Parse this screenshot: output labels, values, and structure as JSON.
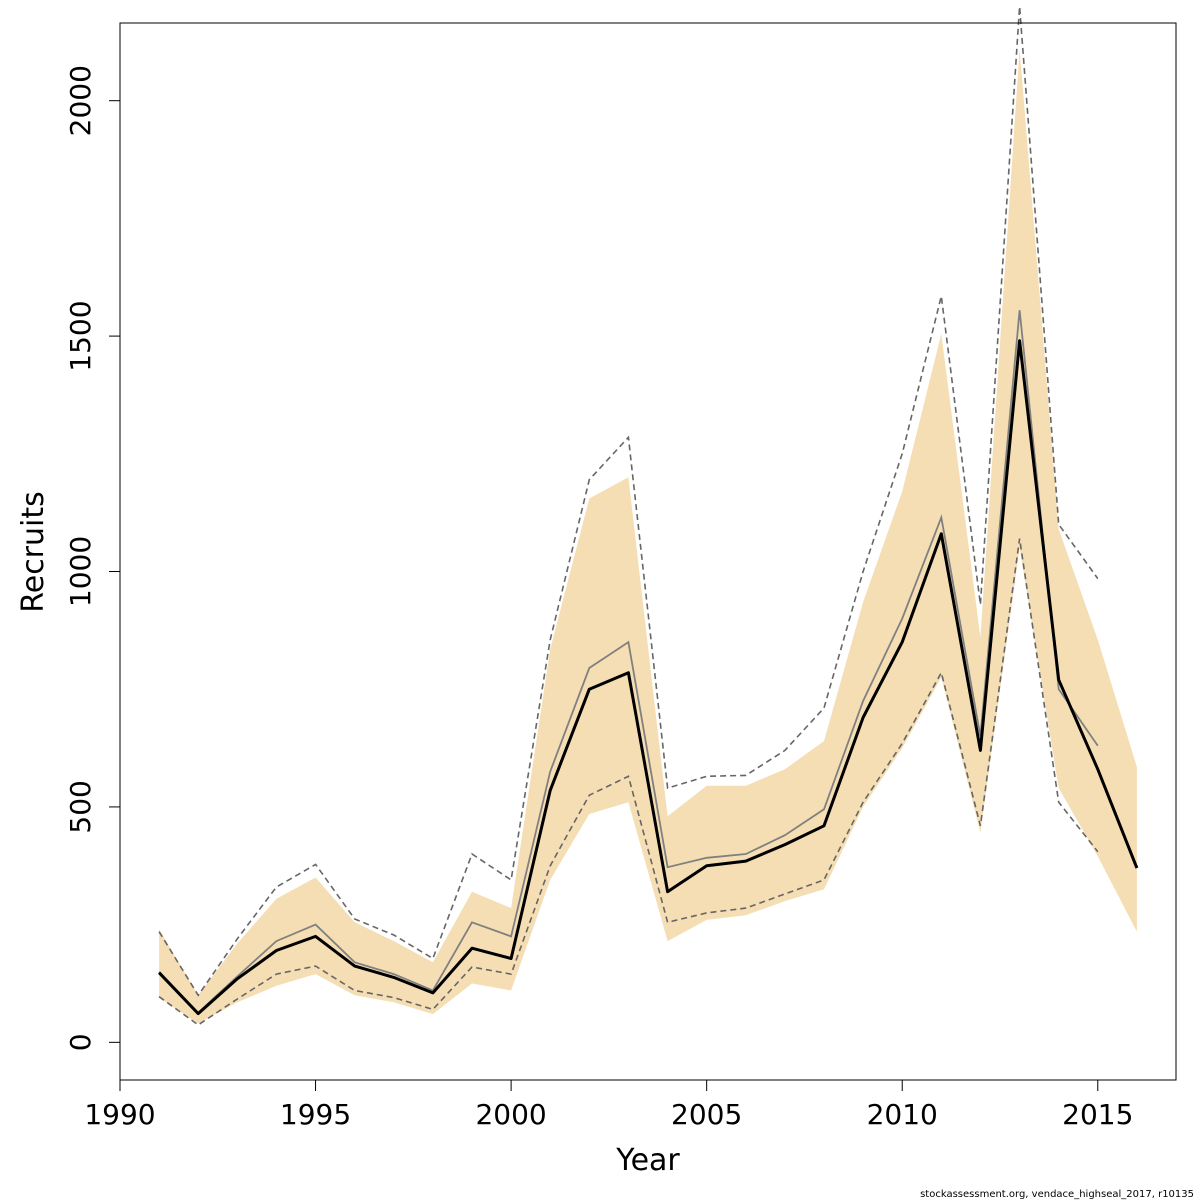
{
  "chart_data": {
    "type": "line",
    "title": "",
    "xlabel": "Year",
    "ylabel": "Recruits",
    "xlim": [
      1990,
      2017
    ],
    "ylim": [
      -80,
      2165
    ],
    "grid": false,
    "legend": "none",
    "x_ticks": [
      1990,
      1995,
      2000,
      2005,
      2010,
      2015
    ],
    "x_tick_labels": [
      "1990",
      "1995",
      "2000",
      "2005",
      "2010",
      "2015"
    ],
    "y_ticks": [
      0,
      500,
      1000,
      1500,
      2000
    ],
    "y_tick_labels": [
      "0",
      "500",
      "1000",
      "1500",
      "2000"
    ],
    "colors": {
      "band": "#F5DEB3",
      "main_line": "#000000",
      "previous_line": "#808080",
      "previous_interval": "#666666"
    },
    "band": {
      "x": [
        1991,
        1992,
        1993,
        1994,
        1995,
        1996,
        1997,
        1998,
        1999,
        2000,
        2001,
        2002,
        2003,
        2004,
        2005,
        2006,
        2007,
        2008,
        2009,
        2010,
        2011,
        2012,
        2013,
        2014,
        2015,
        2016
      ],
      "upper": [
        240,
        100,
        210,
        305,
        350,
        255,
        215,
        170,
        320,
        285,
        835,
        1155,
        1200,
        480,
        545,
        545,
        580,
        640,
        935,
        1170,
        1505,
        860,
        2110,
        1090,
        855,
        585
      ],
      "lower": [
        95,
        40,
        85,
        120,
        145,
        100,
        85,
        60,
        125,
        110,
        345,
        485,
        510,
        215,
        260,
        270,
        300,
        325,
        500,
        625,
        775,
        445,
        1050,
        540,
        395,
        235
      ]
    },
    "series": [
      {
        "x": [
          1991,
          1992,
          1993,
          1994,
          1995,
          1996,
          1997,
          1998,
          1999,
          2000,
          2001,
          2002,
          2003,
          2004,
          2005,
          2006,
          2007,
          2008,
          2009,
          2010,
          2011,
          2012,
          2013,
          2014,
          2015,
          2016
        ],
        "values": [
          148,
          61,
          135,
          195,
          225,
          162,
          138,
          105,
          200,
          178,
          535,
          750,
          785,
          320,
          375,
          385,
          420,
          460,
          690,
          850,
          1080,
          620,
          1490,
          770,
          580,
          370
        ]
      },
      {
        "x": [
          1991,
          1992,
          1993,
          1994,
          1995,
          1996,
          1997,
          1998,
          1999,
          2000,
          2001,
          2002,
          2003,
          2004,
          2005,
          2006,
          2007,
          2008,
          2009,
          2010,
          2011,
          2012,
          2013,
          2014,
          2015
        ],
        "values": [
          150,
          63,
          140,
          215,
          250,
          170,
          145,
          110,
          255,
          225,
          575,
          795,
          850,
          372,
          392,
          400,
          440,
          495,
          725,
          900,
          1115,
          650,
          1555,
          750,
          630
        ]
      }
    ],
    "previous_interval": {
      "x": [
        1991,
        1992,
        1993,
        1994,
        1995,
        1996,
        1997,
        1998,
        1999,
        2000,
        2001,
        2002,
        2003,
        2004,
        2005,
        2006,
        2007,
        2008,
        2009,
        2010,
        2011,
        2012,
        2013,
        2014,
        2015
      ],
      "upper": [
        235,
        100,
        220,
        330,
        378,
        262,
        228,
        178,
        400,
        345,
        855,
        1195,
        1285,
        540,
        565,
        567,
        620,
        710,
        1000,
        1250,
        1585,
        930,
        2200,
        1100,
        985
      ],
      "lower": [
        97,
        37,
        92,
        145,
        162,
        110,
        95,
        70,
        160,
        145,
        375,
        525,
        565,
        255,
        275,
        285,
        315,
        345,
        510,
        635,
        785,
        460,
        1070,
        510,
        405
      ]
    },
    "caption": "stockassessment.org, vendace_highseal_2017, r10135"
  }
}
